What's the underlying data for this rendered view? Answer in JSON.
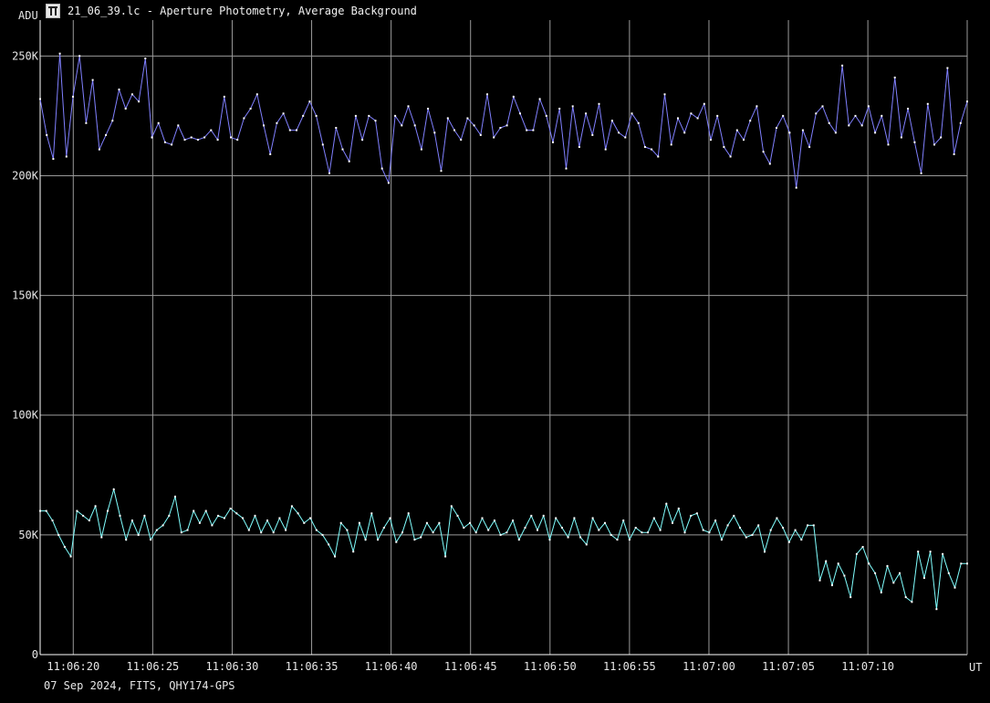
{
  "window": {
    "title": "21_06_39.lc - Aperture Photometry, Average Background",
    "icon": "app-icon"
  },
  "footer": "07 Sep 2024, FITS, QHY174-GPS",
  "chart_data": {
    "type": "line",
    "title": "21_06_39.lc - Aperture Photometry, Average Background",
    "ylabel": "ADU",
    "xlabel": "UT",
    "ylim": [
      0,
      265000
    ],
    "xlim": [
      0,
      140
    ],
    "yticks": [
      {
        "value": 0,
        "label": "0"
      },
      {
        "value": 50000,
        "label": "50K"
      },
      {
        "value": 100000,
        "label": "100K"
      },
      {
        "value": 150000,
        "label": "150K"
      },
      {
        "value": 200000,
        "label": "200K"
      },
      {
        "value": 250000,
        "label": "250K"
      }
    ],
    "xticks": [
      {
        "value": 5,
        "label": "11:06:20"
      },
      {
        "value": 17,
        "label": "11:06:25"
      },
      {
        "value": 29,
        "label": "11:06:30"
      },
      {
        "value": 41,
        "label": "11:06:35"
      },
      {
        "value": 53,
        "label": "11:06:40"
      },
      {
        "value": 65,
        "label": "11:06:45"
      },
      {
        "value": 77,
        "label": "11:06:50"
      },
      {
        "value": 89,
        "label": "11:06:55"
      },
      {
        "value": 101,
        "label": "11:07:00"
      },
      {
        "value": 113,
        "label": "11:07:05"
      },
      {
        "value": 125,
        "label": "11:07:10"
      }
    ],
    "grid": true,
    "colors": {
      "background": "#000000",
      "grid": "#9a9a9a",
      "axis": "#ffffff"
    },
    "series": [
      {
        "color": "#8080ff",
        "values": [
          232000,
          217000,
          207000,
          251000,
          208000,
          233000,
          250000,
          222000,
          240000,
          211000,
          217000,
          223000,
          236000,
          228000,
          234000,
          231000,
          249000,
          216000,
          222000,
          214000,
          213000,
          221000,
          215000,
          216000,
          215000,
          216000,
          219000,
          215000,
          233000,
          216000,
          215000,
          224000,
          228000,
          234000,
          221000,
          209000,
          222000,
          226000,
          219000,
          219000,
          225000,
          231000,
          225000,
          213000,
          201000,
          220000,
          211000,
          206000,
          225000,
          215000,
          225000,
          223000,
          203000,
          197000,
          225000,
          221000,
          229000,
          221000,
          211000,
          228000,
          218000,
          202000,
          224000,
          219000,
          215000,
          224000,
          221000,
          217000,
          234000,
          216000,
          220000,
          221000,
          233000,
          226000,
          219000,
          219000,
          232000,
          225000,
          214000,
          228000,
          203000,
          229000,
          212000,
          226000,
          217000,
          230000,
          211000,
          223000,
          218000,
          216000,
          226000,
          222000,
          212000,
          211000,
          208000,
          234000,
          213000,
          224000,
          218000,
          226000,
          224000,
          230000,
          215000,
          225000,
          212000,
          208000,
          219000,
          215000,
          223000,
          229000,
          210000,
          205000,
          220000,
          225000,
          218000,
          195000,
          219000,
          212000,
          226000,
          229000,
          222000,
          218000,
          246000,
          221000,
          225000,
          221000,
          229000,
          218000,
          225000,
          213000,
          241000,
          216000,
          228000,
          214000,
          201000,
          230000,
          213000,
          216000,
          245000,
          209000,
          222000,
          231000
        ],
        "values2": []
      },
      {
        "color": "#80ffff",
        "values": [
          60000,
          60000,
          56000,
          50000,
          45000,
          41000,
          60000,
          58000,
          56000,
          62000,
          49000,
          60000,
          69000,
          58000,
          48000,
          56000,
          50000,
          58000,
          48000,
          52000,
          54000,
          58000,
          66000,
          51000,
          52000,
          60000,
          55000,
          60000,
          54000,
          58000,
          57000,
          61000,
          59000,
          57000,
          52000,
          58000,
          51000,
          56000,
          51000,
          57000,
          52000,
          62000,
          59000,
          55000,
          57000,
          52000,
          50000,
          46000,
          41000,
          55000,
          52000,
          43000,
          55000,
          48000,
          59000,
          48000,
          53000,
          57000,
          47000,
          51000,
          59000,
          48000,
          49000,
          55000,
          51000,
          55000,
          41000,
          62000,
          58000,
          53000,
          55000,
          51000,
          57000,
          52000,
          56000,
          50000,
          51000,
          56000,
          48000,
          53000,
          58000,
          52000,
          58000,
          48000,
          57000,
          53000,
          49000,
          57000,
          49000,
          46000,
          57000,
          52000,
          55000,
          50000,
          48000,
          56000,
          48000,
          53000,
          51000,
          51000,
          57000,
          52000,
          63000,
          55000,
          61000,
          51000,
          58000,
          59000,
          52000,
          51000,
          56000,
          48000,
          54000,
          58000,
          53000,
          49000,
          50000,
          54000,
          43000,
          52000,
          57000,
          53000,
          47000,
          52000,
          48000,
          54000,
          54000,
          31000,
          39000,
          29000,
          38000,
          33000,
          24000,
          42000,
          45000,
          38000,
          34000,
          26000,
          37000,
          30000,
          34000,
          24000,
          22000,
          43000,
          32000,
          43000,
          19000,
          42000,
          34000,
          28000,
          38000,
          38000
        ]
      }
    ]
  }
}
